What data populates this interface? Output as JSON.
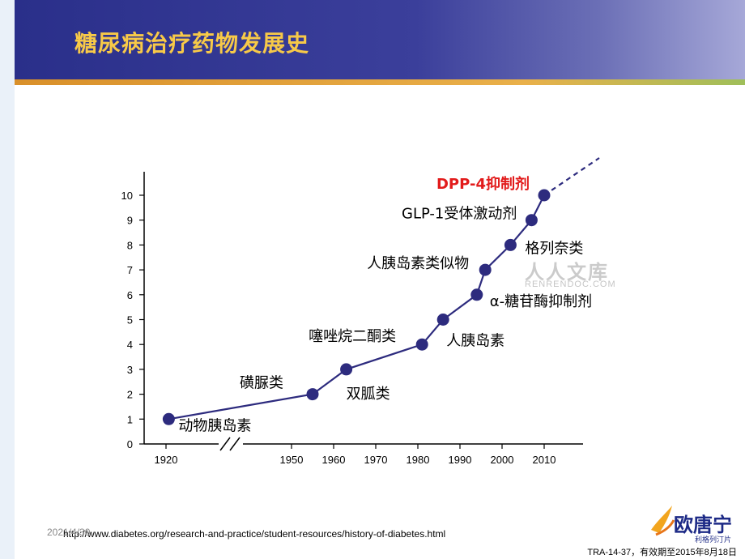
{
  "slide": {
    "title": "糖尿病治疗药物发展史",
    "source": "http://www.diabetes.org/research-and-practice/student-resources/history-of-diabetes.html",
    "date_overlay": "2021/4/30",
    "code": "TRA-14-37，有效期至2015年8月18日",
    "logo_name": "欧唐宁",
    "logo_sub": "利格列汀片",
    "watermark": "人人文库",
    "watermark_sub": "RENRENDOC.COM"
  },
  "chart_data": {
    "type": "line",
    "title": "",
    "xlabel": "",
    "ylabel": "",
    "ylim": [
      0,
      10
    ],
    "yticks": [
      0,
      1,
      2,
      3,
      4,
      5,
      6,
      7,
      8,
      9,
      10
    ],
    "xticks": [
      "1920",
      "1950",
      "1960",
      "1970",
      "1980",
      "1990",
      "2000",
      "2010"
    ],
    "x_axis_break": true,
    "series": [
      {
        "color": "#2d2b7e",
        "points": [
          {
            "x": 1922,
            "y": 1,
            "label": "动物胰岛素"
          },
          {
            "x": 1955,
            "y": 2,
            "label": "磺脲类"
          },
          {
            "x": 1963,
            "y": 3,
            "label": "双胍类"
          },
          {
            "x": 1981,
            "y": 4,
            "label": "噻唑烷二酮类"
          },
          {
            "x": 1986,
            "y": 5,
            "label": "人胰岛素"
          },
          {
            "x": 1994,
            "y": 6,
            "label": "α-糖苷酶抑制剂"
          },
          {
            "x": 1996,
            "y": 7,
            "label": "人胰岛素类似物"
          },
          {
            "x": 2002,
            "y": 8,
            "label": "格列奈类"
          },
          {
            "x": 2007,
            "y": 9,
            "label": "GLP-1受体激动剂"
          },
          {
            "x": 2010,
            "y": 10,
            "label": "DPP-4抑制剂",
            "highlight": true
          }
        ],
        "trend_extension": "dashed"
      }
    ],
    "highlight_color": "#e21b1b"
  }
}
